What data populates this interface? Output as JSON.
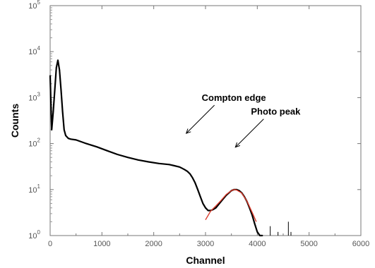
{
  "chart_data": {
    "type": "line",
    "xlabel": "Channel",
    "ylabel": "Counts",
    "xlim": [
      0,
      6000
    ],
    "ylim": [
      1,
      100000
    ],
    "yscale": "log",
    "grid": false,
    "x_ticks": [
      0,
      1000,
      2000,
      3000,
      4000,
      5000,
      6000
    ],
    "y_ticks": [
      {
        "value": 1,
        "base": "10",
        "exp": "0"
      },
      {
        "value": 10,
        "base": "10",
        "exp": "1"
      },
      {
        "value": 100,
        "base": "10",
        "exp": "2"
      },
      {
        "value": 1000,
        "base": "10",
        "exp": "3"
      },
      {
        "value": 10000,
        "base": "10",
        "exp": "4"
      },
      {
        "value": 100000,
        "base": "10",
        "exp": "5"
      }
    ],
    "series": [
      {
        "role": "spectrum",
        "color": "#000000",
        "x": [
          0,
          30,
          60,
          90,
          120,
          150,
          180,
          210,
          240,
          270,
          300,
          350,
          400,
          500,
          700,
          900,
          1100,
          1300,
          1500,
          1700,
          1900,
          2100,
          2300,
          2400,
          2500,
          2550,
          2600,
          2650,
          2700,
          2750,
          2800,
          2850,
          2900,
          2950,
          3000,
          3050,
          3100,
          3150,
          3200,
          3300,
          3400,
          3500,
          3550,
          3600,
          3650,
          3700,
          3750,
          3800,
          3850,
          3900,
          3950,
          4000,
          4050,
          4100
        ],
        "y": [
          3000,
          200,
          500,
          1500,
          4500,
          6500,
          4000,
          1500,
          500,
          200,
          150,
          130,
          125,
          120,
          100,
          85,
          70,
          58,
          50,
          44,
          40,
          37,
          35,
          33,
          31,
          29,
          27,
          25,
          22,
          18,
          14,
          10,
          7,
          5,
          4,
          3.5,
          3.5,
          3.7,
          4,
          5.5,
          7.5,
          9.5,
          10,
          10,
          9.5,
          8.5,
          7,
          5.5,
          4,
          2.8,
          1.8,
          1.2,
          0.9,
          0.8
        ]
      },
      {
        "role": "photopeak-fit",
        "color": "#d93a2b",
        "x": [
          3000,
          3100,
          3200,
          3300,
          3400,
          3500,
          3550,
          3600,
          3700,
          3800,
          3900,
          3980
        ],
        "y": [
          2.2,
          3.4,
          4.4,
          5.8,
          7.8,
          9.5,
          10,
          9.8,
          8.4,
          5.6,
          3.2,
          2.0
        ]
      }
    ],
    "spikes": [
      {
        "x": 4250,
        "y": 1.6
      },
      {
        "x": 4400,
        "y": 1.2
      },
      {
        "x": 4600,
        "y": 2.0
      },
      {
        "x": 4650,
        "y": 1.2
      }
    ],
    "annotations": [
      {
        "text": "Compton edge",
        "x": 2600,
        "y": 150
      },
      {
        "text": "Photo peak",
        "x": 3550,
        "y": 75
      }
    ]
  }
}
